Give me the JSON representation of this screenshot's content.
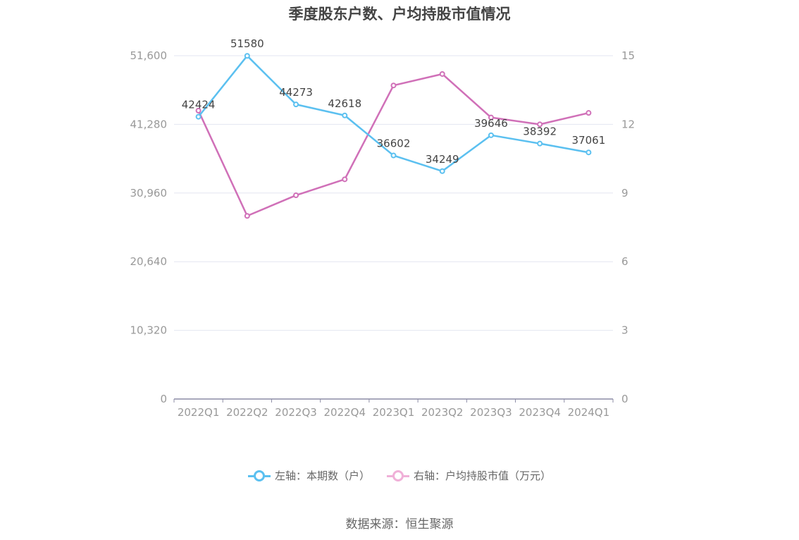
{
  "title": "季度股东户数、户均持股市值情况",
  "source": "数据来源：恒生聚源",
  "legend": [
    {
      "label": "左轴：本期数（户）",
      "color": "#5bc0f0"
    },
    {
      "label": "右轴：户均持股市值（万元）",
      "color": "#d070b8"
    }
  ],
  "chart_data": {
    "type": "line",
    "categories": [
      "2022Q1",
      "2022Q2",
      "2022Q3",
      "2022Q4",
      "2023Q1",
      "2023Q2",
      "2023Q3",
      "2023Q4",
      "2024Q1"
    ],
    "y_left": {
      "ticks": [
        "0",
        "10,320",
        "20,640",
        "30,960",
        "41,280",
        "51,600"
      ],
      "min": 0,
      "max": 51600
    },
    "y_right": {
      "ticks": [
        "0",
        "3",
        "6",
        "9",
        "12",
        "15"
      ],
      "min": 0,
      "max": 15
    },
    "series": [
      {
        "name": "左轴：本期数（户）",
        "axis": "left",
        "color": "#5bc0f0",
        "values": [
          42424,
          51580,
          44273,
          42618,
          36602,
          34249,
          39646,
          38392,
          37061
        ],
        "labels": [
          "42424",
          "51580",
          "44273",
          "42618",
          "36602",
          "34249",
          "39646",
          "38392",
          "37061"
        ]
      },
      {
        "name": "右轴：户均持股市值（万元）",
        "axis": "right",
        "color": "#d070b8",
        "values": [
          12.6,
          8.0,
          8.9,
          9.6,
          13.7,
          14.2,
          12.3,
          12.0,
          12.5
        ]
      }
    ]
  }
}
